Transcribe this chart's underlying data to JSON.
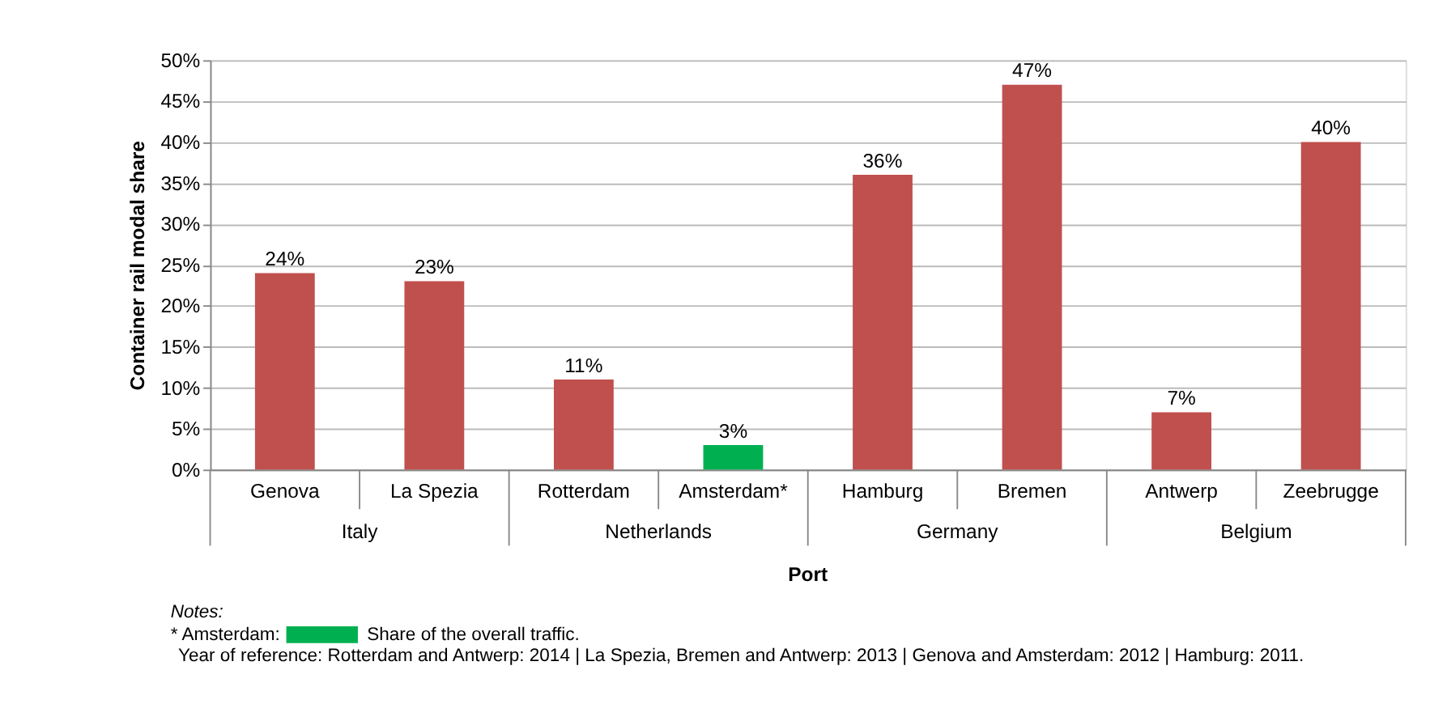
{
  "chart_data": {
    "type": "bar",
    "xlabel": "Port",
    "ylabel": "Container rail modal share",
    "categories": [
      "Genova",
      "La Spezia",
      "Rotterdam",
      "Amsterdam*",
      "Hamburg",
      "Bremen",
      "Antwerp",
      "Zeebrugge"
    ],
    "values": [
      24,
      23,
      11,
      3,
      36,
      47,
      7,
      40
    ],
    "colors": [
      "#c0504d",
      "#c0504d",
      "#c0504d",
      "#00b050",
      "#c0504d",
      "#c0504d",
      "#c0504d",
      "#c0504d"
    ],
    "value_labels": [
      "24%",
      "23%",
      "11%",
      "3%",
      "36%",
      "47%",
      "7%",
      "40%"
    ],
    "ylim": [
      0,
      50
    ],
    "yticks": [
      {
        "value": 0,
        "label": "0%"
      },
      {
        "value": 5,
        "label": "5%"
      },
      {
        "value": 10,
        "label": "10%"
      },
      {
        "value": 15,
        "label": "15%"
      },
      {
        "value": 20,
        "label": "20%"
      },
      {
        "value": 25,
        "label": "25%"
      },
      {
        "value": 30,
        "label": "30%"
      },
      {
        "value": 35,
        "label": "35%"
      },
      {
        "value": 40,
        "label": "40%"
      },
      {
        "value": 45,
        "label": "45%"
      },
      {
        "value": 50,
        "label": "50%"
      }
    ],
    "grid": "y",
    "legend": false,
    "annotations": [
      "Italy",
      "Netherlands",
      "Germany",
      "Belgium",
      "Notes:",
      "* Amsterdam:",
      "Share of the overall traffic.",
      "Year of reference: Rotterdam and Antwerp: 2014 | La Spezia, Bremen and Antwerp: 2013 | Genova and Amsterdam: 2012 | Hamburg: 2011."
    ]
  }
}
